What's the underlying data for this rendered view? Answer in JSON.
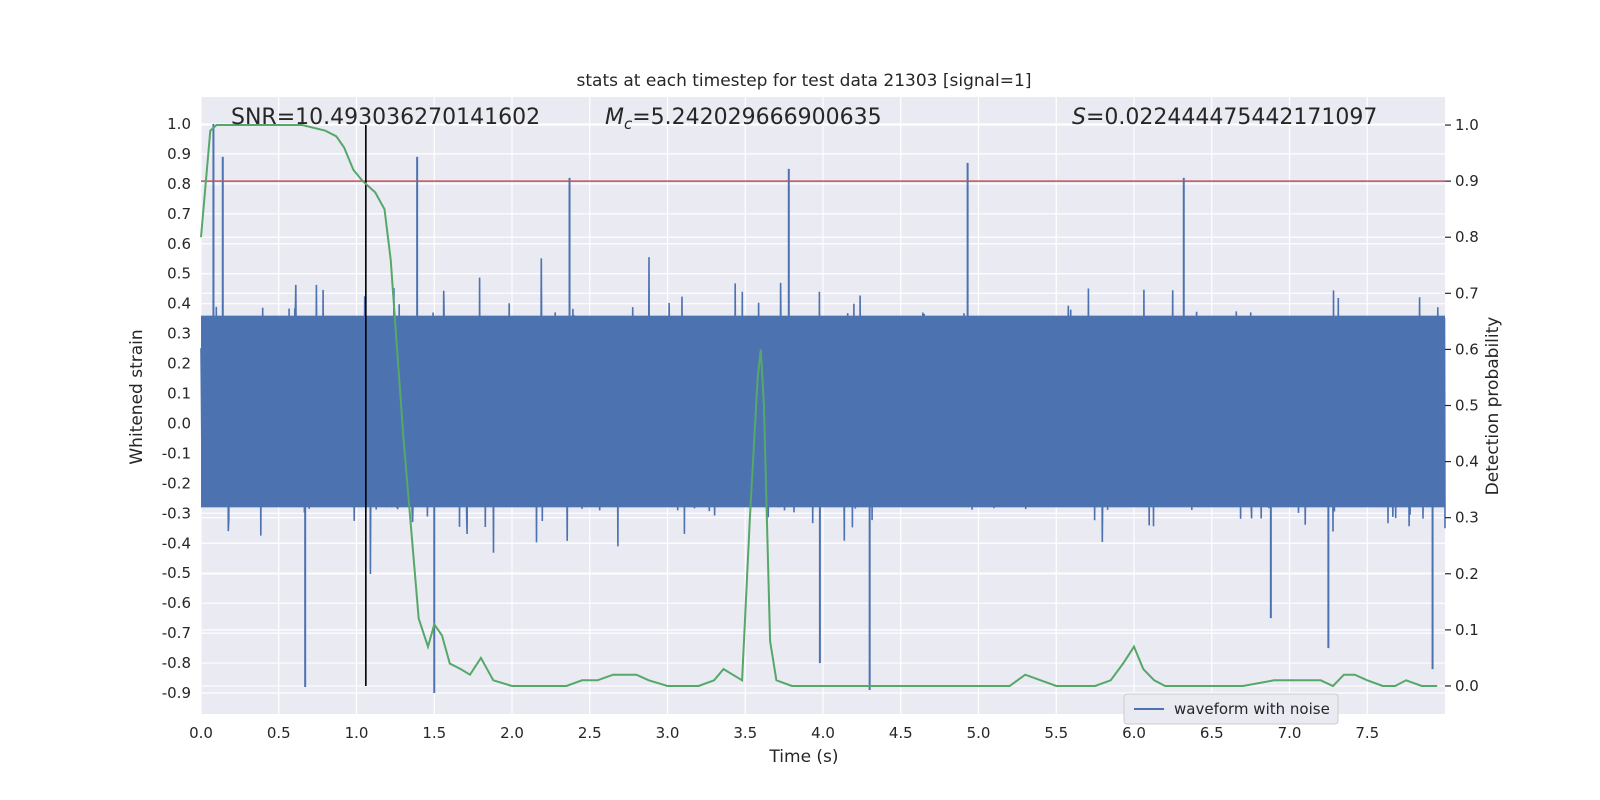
{
  "chart_data": {
    "type": "line",
    "title": "stats at each timestep for test data 21303 [signal=1]",
    "xlabel": "Time (s)",
    "ylabel": "Whitened strain",
    "y2label": "Detection probability",
    "xlim": [
      0.0,
      8.0
    ],
    "ylim": [
      -0.97,
      1.09
    ],
    "y2lim": [
      -0.05,
      1.05
    ],
    "x_ticks": [
      "0.0",
      "0.5",
      "1.0",
      "1.5",
      "2.0",
      "2.5",
      "3.0",
      "3.5",
      "4.0",
      "4.5",
      "5.0",
      "5.5",
      "6.0",
      "6.5",
      "7.0",
      "7.5"
    ],
    "y_ticks": [
      "1.0",
      "0.9",
      "0.8",
      "0.7",
      "0.6",
      "0.5",
      "0.4",
      "0.3",
      "0.2",
      "0.1",
      "0.0",
      "-0.1",
      "-0.2",
      "-0.3",
      "-0.4",
      "-0.5",
      "-0.6",
      "-0.7",
      "-0.8",
      "-0.9"
    ],
    "y2_ticks": [
      "1.0",
      "0.9",
      "0.8",
      "0.7",
      "0.6",
      "0.5",
      "0.4",
      "0.3",
      "0.2",
      "0.1",
      "0.0"
    ],
    "grid": true,
    "legend_position": "lower-right",
    "annotations": {
      "snr": "SNR=10.493036270141602",
      "mc_symbol": "M",
      "mc_sub": "c",
      "mc_value": "=5.242029666900635",
      "s_symbol": "S",
      "s_value": "=0.022444475442171097"
    },
    "threshold": 0.9,
    "marker_time": 1.06,
    "series": [
      {
        "name": "waveform with noise",
        "color": "#4c72b0",
        "noise_sigma": 0.16,
        "core_range": [
          -0.28,
          0.36
        ],
        "prominent_peaks": [
          {
            "x": 0.08,
            "y": 1.0
          },
          {
            "x": 0.14,
            "y": 0.89
          },
          {
            "x": 1.39,
            "y": 0.89
          },
          {
            "x": 4.93,
            "y": 0.87
          },
          {
            "x": 3.78,
            "y": 0.85
          },
          {
            "x": 6.32,
            "y": 0.82
          },
          {
            "x": 2.37,
            "y": 0.82
          },
          {
            "x": 0.67,
            "y": -0.88
          },
          {
            "x": 1.5,
            "y": -0.9
          },
          {
            "x": 4.3,
            "y": -0.89
          },
          {
            "x": 3.98,
            "y": -0.8
          },
          {
            "x": 7.25,
            "y": -0.75
          },
          {
            "x": 7.92,
            "y": -0.82
          },
          {
            "x": 6.88,
            "y": -0.65
          }
        ]
      },
      {
        "name": "detection probability",
        "color": "#55a868",
        "axis": "right",
        "x": [
          0.0,
          0.06,
          0.1,
          0.16,
          0.3,
          0.5,
          0.65,
          0.8,
          0.87,
          0.92,
          0.98,
          1.04,
          1.12,
          1.18,
          1.22,
          1.3,
          1.4,
          1.46,
          1.5,
          1.55,
          1.6,
          1.67,
          1.73,
          1.8,
          1.88,
          2.0,
          2.2,
          2.35,
          2.45,
          2.55,
          2.65,
          2.72,
          2.8,
          2.88,
          3.0,
          3.2,
          3.3,
          3.36,
          3.42,
          3.48,
          3.53,
          3.58,
          3.6,
          3.62,
          3.66,
          3.7,
          3.8,
          4.0,
          4.5,
          5.0,
          5.2,
          5.3,
          5.5,
          5.75,
          5.85,
          5.93,
          6.0,
          6.06,
          6.13,
          6.2,
          6.35,
          6.5,
          6.7,
          6.9,
          7.0,
          7.1,
          7.2,
          7.28,
          7.35,
          7.42,
          7.5,
          7.6,
          7.68,
          7.75,
          7.85,
          7.95
        ],
        "y": [
          0.8,
          0.99,
          1.0,
          1.0,
          1.0,
          1.0,
          1.0,
          0.99,
          0.98,
          0.96,
          0.92,
          0.9,
          0.88,
          0.85,
          0.76,
          0.45,
          0.12,
          0.07,
          0.11,
          0.09,
          0.04,
          0.03,
          0.02,
          0.05,
          0.01,
          0.0,
          0.0,
          0.0,
          0.01,
          0.01,
          0.02,
          0.02,
          0.02,
          0.01,
          0.0,
          0.0,
          0.01,
          0.03,
          0.02,
          0.01,
          0.3,
          0.55,
          0.6,
          0.5,
          0.08,
          0.01,
          0.0,
          0.0,
          0.0,
          0.0,
          0.0,
          0.02,
          0.0,
          0.0,
          0.01,
          0.04,
          0.07,
          0.03,
          0.01,
          0.0,
          0.0,
          0.0,
          0.0,
          0.01,
          0.01,
          0.01,
          0.01,
          0.0,
          0.02,
          0.02,
          0.01,
          0.0,
          0.0,
          0.01,
          0.0,
          0.0
        ]
      }
    ]
  }
}
